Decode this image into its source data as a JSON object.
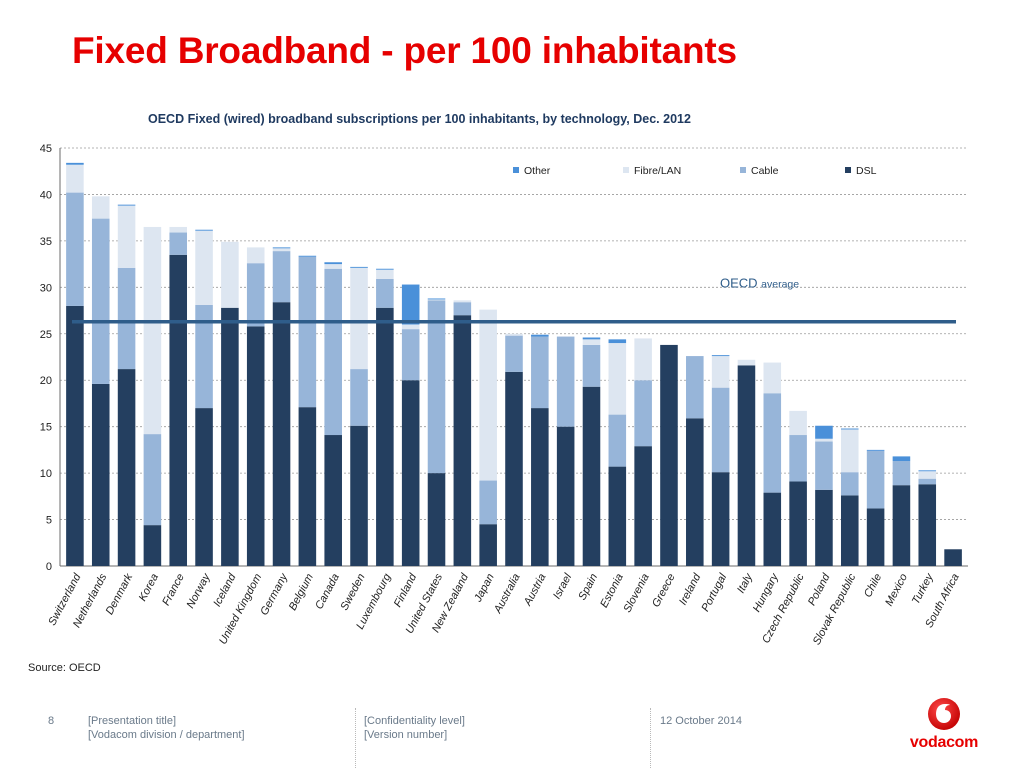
{
  "slide": {
    "title": "Fixed Broadband - per 100 inhabitants"
  },
  "footer": {
    "page_number": "8",
    "presentation_title": "[Presentation title]",
    "division": "[Vodacom division / department]",
    "confidentiality": "[Confidentiality level]",
    "version": "[Version number]",
    "date": "12 October 2014",
    "logo_text": "vodacom"
  },
  "colors": {
    "title": "#e60000",
    "other": "#4a90d9",
    "fibre_lan": "#dde6f1",
    "cable": "#97b5d9",
    "dsl": "#243f60",
    "average_line": "#2f5d8a"
  },
  "chart_data": {
    "type": "bar",
    "stacked": true,
    "title": "OECD Fixed (wired) broadband subscriptions  per 100 inhabitants, by technology, Dec. 2012",
    "xlabel": "",
    "ylabel": "",
    "ylim": [
      0,
      45
    ],
    "yticks": [
      0,
      5,
      10,
      15,
      20,
      25,
      30,
      35,
      40,
      45
    ],
    "grid": true,
    "legend_position": "top-right",
    "source": "Source: OECD",
    "categories": [
      "Switzerland",
      "Netherlands",
      "Denmark",
      "Korea",
      "France",
      "Norway",
      "Iceland",
      "United Kingdom",
      "Germany",
      "Belgium",
      "Canada",
      "Sweden",
      "Luxembourg",
      "Finland",
      "United States",
      "New Zealand",
      "Japan",
      "Australia",
      "Austria",
      "Israel",
      "Spain",
      "Estonia",
      "Slovenia",
      "Greece",
      "Ireland",
      "Portugal",
      "Italy",
      "Hungary",
      "Czech Republic",
      "Poland",
      "Slovak Republic",
      "Chile",
      "Mexico",
      "Turkey",
      "South Africa"
    ],
    "series": [
      {
        "name": "DSL",
        "values": [
          28.0,
          19.6,
          21.2,
          4.4,
          33.5,
          17.0,
          27.8,
          25.8,
          28.4,
          17.1,
          14.1,
          15.1,
          27.8,
          20.0,
          10.0,
          27.0,
          4.5,
          20.9,
          17.0,
          15.0,
          19.3,
          10.7,
          12.9,
          23.8,
          15.9,
          10.1,
          21.6,
          7.9,
          9.1,
          8.2,
          7.6,
          6.2,
          8.7,
          8.8,
          1.8
        ]
      },
      {
        "name": "Cable",
        "values": [
          12.2,
          17.8,
          10.9,
          9.8,
          2.4,
          11.1,
          0.0,
          6.8,
          5.5,
          16.2,
          17.9,
          6.1,
          3.1,
          5.5,
          18.6,
          1.4,
          4.7,
          3.9,
          7.7,
          9.7,
          4.5,
          5.6,
          7.1,
          0.0,
          6.7,
          9.1,
          0.0,
          10.7,
          5.0,
          5.2,
          2.5,
          6.2,
          2.6,
          0.6,
          0.0
        ]
      },
      {
        "name": "Fibre/LAN",
        "values": [
          3.0,
          2.4,
          6.7,
          22.3,
          0.6,
          8.0,
          7.1,
          1.7,
          0.3,
          0.0,
          0.5,
          10.9,
          1.0,
          0.5,
          0.1,
          0.2,
          18.4,
          0.2,
          0.0,
          0.0,
          0.6,
          7.7,
          4.5,
          0.0,
          0.0,
          3.4,
          0.6,
          3.3,
          2.6,
          0.3,
          4.6,
          0.0,
          0.0,
          0.8,
          0.0
        ]
      },
      {
        "name": "Other",
        "values": [
          0.2,
          0.0,
          0.1,
          0.0,
          0.0,
          0.1,
          0.0,
          0.0,
          0.1,
          0.1,
          0.2,
          0.1,
          0.1,
          4.3,
          0.1,
          0.0,
          0.0,
          0.0,
          0.2,
          0.0,
          0.2,
          0.4,
          0.0,
          0.0,
          0.0,
          0.1,
          0.0,
          0.0,
          0.0,
          1.4,
          0.1,
          0.1,
          0.5,
          0.1,
          0.0
        ]
      }
    ],
    "average": {
      "label": "OECD",
      "label_suffix": "average",
      "value": 26.3
    }
  }
}
